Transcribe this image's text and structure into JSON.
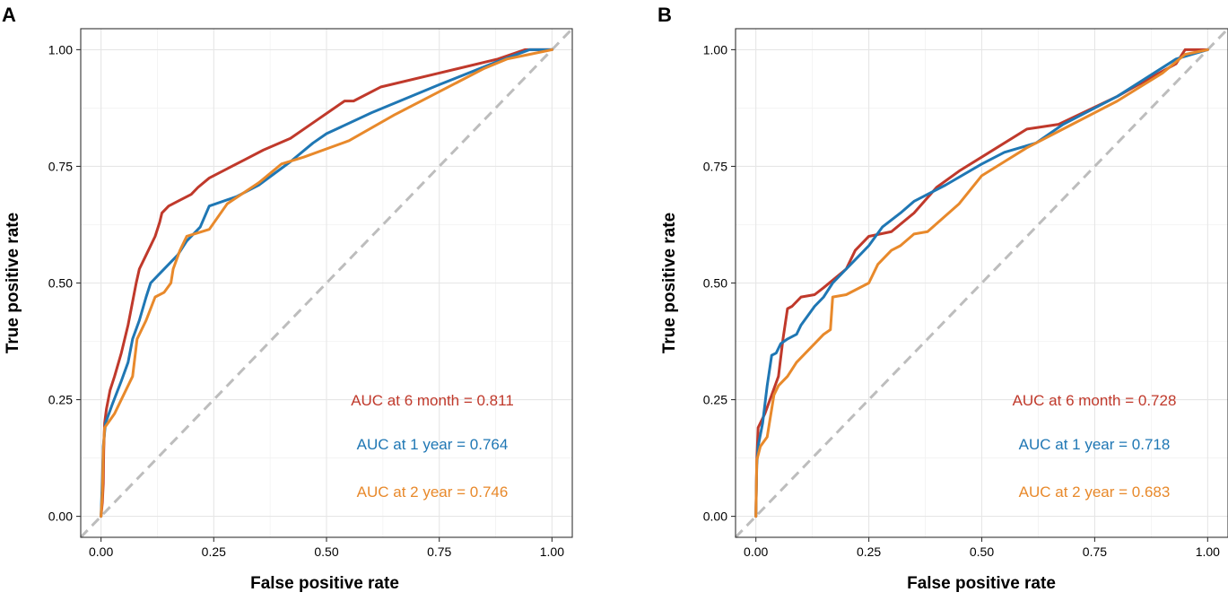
{
  "figure": {
    "colors": {
      "six_month": "#c0392b",
      "one_year": "#1f77b4",
      "two_year": "#e8892b",
      "reference": "#bdbdbd"
    }
  },
  "chart_data": [
    {
      "panel": "A",
      "type": "line",
      "xlabel": "False positive rate",
      "ylabel": "True positive rate",
      "xlim": [
        0,
        1
      ],
      "ylim": [
        0,
        1
      ],
      "xticks": [
        "0.00",
        "0.25",
        "0.50",
        "0.75",
        "1.00"
      ],
      "yticks": [
        "0.00",
        "0.25",
        "0.50",
        "0.75",
        "1.00"
      ],
      "grid": true,
      "reference_line": [
        [
          0,
          0
        ],
        [
          1,
          1
        ]
      ],
      "series": [
        {
          "name": "6 month",
          "label": "AUC at 6 month = 0.811",
          "color": "#c0392b",
          "points": [
            [
              0,
              0
            ],
            [
              0.003,
              0.03
            ],
            [
              0.005,
              0.07
            ],
            [
              0.006,
              0.14
            ],
            [
              0.008,
              0.2
            ],
            [
              0.012,
              0.23
            ],
            [
              0.02,
              0.27
            ],
            [
              0.03,
              0.3
            ],
            [
              0.045,
              0.35
            ],
            [
              0.06,
              0.41
            ],
            [
              0.07,
              0.46
            ],
            [
              0.078,
              0.5
            ],
            [
              0.085,
              0.53
            ],
            [
              0.1,
              0.56
            ],
            [
              0.12,
              0.6
            ],
            [
              0.13,
              0.63
            ],
            [
              0.135,
              0.65
            ],
            [
              0.15,
              0.665
            ],
            [
              0.17,
              0.675
            ],
            [
              0.2,
              0.69
            ],
            [
              0.215,
              0.705
            ],
            [
              0.24,
              0.725
            ],
            [
              0.28,
              0.745
            ],
            [
              0.32,
              0.765
            ],
            [
              0.36,
              0.785
            ],
            [
              0.42,
              0.81
            ],
            [
              0.48,
              0.85
            ],
            [
              0.54,
              0.89
            ],
            [
              0.56,
              0.89
            ],
            [
              0.62,
              0.92
            ],
            [
              0.75,
              0.95
            ],
            [
              0.88,
              0.98
            ],
            [
              0.94,
              1.0
            ],
            [
              1.0,
              1.0
            ]
          ]
        },
        {
          "name": "1 year",
          "label": "AUC at 1 year = 0.764",
          "color": "#1f77b4",
          "points": [
            [
              0,
              0
            ],
            [
              0.003,
              0.08
            ],
            [
              0.005,
              0.15
            ],
            [
              0.01,
              0.2
            ],
            [
              0.025,
              0.24
            ],
            [
              0.045,
              0.29
            ],
            [
              0.06,
              0.33
            ],
            [
              0.07,
              0.38
            ],
            [
              0.085,
              0.42
            ],
            [
              0.1,
              0.47
            ],
            [
              0.11,
              0.5
            ],
            [
              0.13,
              0.52
            ],
            [
              0.15,
              0.54
            ],
            [
              0.17,
              0.56
            ],
            [
              0.19,
              0.59
            ],
            [
              0.22,
              0.62
            ],
            [
              0.24,
              0.665
            ],
            [
              0.3,
              0.685
            ],
            [
              0.35,
              0.71
            ],
            [
              0.42,
              0.76
            ],
            [
              0.47,
              0.8
            ],
            [
              0.5,
              0.82
            ],
            [
              0.6,
              0.865
            ],
            [
              0.75,
              0.925
            ],
            [
              0.88,
              0.975
            ],
            [
              0.95,
              1.0
            ],
            [
              1.0,
              1.0
            ]
          ]
        },
        {
          "name": "2 year",
          "label": "AUC at 2 year = 0.746",
          "color": "#e8892b",
          "points": [
            [
              0,
              0
            ],
            [
              0.003,
              0.05
            ],
            [
              0.005,
              0.14
            ],
            [
              0.008,
              0.19
            ],
            [
              0.03,
              0.22
            ],
            [
              0.06,
              0.28
            ],
            [
              0.07,
              0.3
            ],
            [
              0.08,
              0.38
            ],
            [
              0.1,
              0.42
            ],
            [
              0.12,
              0.47
            ],
            [
              0.14,
              0.48
            ],
            [
              0.155,
              0.5
            ],
            [
              0.16,
              0.53
            ],
            [
              0.175,
              0.57
            ],
            [
              0.19,
              0.6
            ],
            [
              0.24,
              0.615
            ],
            [
              0.28,
              0.67
            ],
            [
              0.35,
              0.715
            ],
            [
              0.4,
              0.755
            ],
            [
              0.45,
              0.77
            ],
            [
              0.55,
              0.805
            ],
            [
              0.65,
              0.86
            ],
            [
              0.75,
              0.91
            ],
            [
              0.85,
              0.96
            ],
            [
              0.9,
              0.98
            ],
            [
              0.95,
              0.99
            ],
            [
              1.0,
              1.0
            ]
          ]
        }
      ]
    },
    {
      "panel": "B",
      "type": "line",
      "xlabel": "False positive rate",
      "ylabel": "True positive rate",
      "xlim": [
        0,
        1
      ],
      "ylim": [
        0,
        1
      ],
      "xticks": [
        "0.00",
        "0.25",
        "0.50",
        "0.75",
        "1.00"
      ],
      "yticks": [
        "0.00",
        "0.25",
        "0.50",
        "0.75",
        "1.00"
      ],
      "grid": true,
      "reference_line": [
        [
          0,
          0
        ],
        [
          1,
          1
        ]
      ],
      "series": [
        {
          "name": "6 month",
          "label": "AUC at 6 month = 0.728",
          "color": "#c0392b",
          "points": [
            [
              0,
              0
            ],
            [
              0.002,
              0.12
            ],
            [
              0.005,
              0.19
            ],
            [
              0.02,
              0.22
            ],
            [
              0.035,
              0.26
            ],
            [
              0.05,
              0.3
            ],
            [
              0.06,
              0.38
            ],
            [
              0.07,
              0.445
            ],
            [
              0.08,
              0.45
            ],
            [
              0.1,
              0.47
            ],
            [
              0.13,
              0.475
            ],
            [
              0.15,
              0.49
            ],
            [
              0.2,
              0.53
            ],
            [
              0.22,
              0.57
            ],
            [
              0.25,
              0.6
            ],
            [
              0.3,
              0.61
            ],
            [
              0.35,
              0.65
            ],
            [
              0.4,
              0.705
            ],
            [
              0.45,
              0.74
            ],
            [
              0.5,
              0.77
            ],
            [
              0.6,
              0.83
            ],
            [
              0.67,
              0.84
            ],
            [
              0.8,
              0.9
            ],
            [
              0.93,
              0.97
            ],
            [
              0.95,
              1.0
            ],
            [
              1.0,
              1.0
            ]
          ]
        },
        {
          "name": "1 year",
          "label": "AUC at 1 year = 0.718",
          "color": "#1f77b4",
          "points": [
            [
              0,
              0
            ],
            [
              0.002,
              0.11
            ],
            [
              0.005,
              0.15
            ],
            [
              0.015,
              0.2
            ],
            [
              0.025,
              0.28
            ],
            [
              0.035,
              0.345
            ],
            [
              0.045,
              0.35
            ],
            [
              0.055,
              0.37
            ],
            [
              0.07,
              0.38
            ],
            [
              0.09,
              0.39
            ],
            [
              0.1,
              0.41
            ],
            [
              0.13,
              0.45
            ],
            [
              0.15,
              0.47
            ],
            [
              0.17,
              0.5
            ],
            [
              0.2,
              0.53
            ],
            [
              0.23,
              0.56
            ],
            [
              0.25,
              0.58
            ],
            [
              0.28,
              0.62
            ],
            [
              0.32,
              0.65
            ],
            [
              0.35,
              0.675
            ],
            [
              0.42,
              0.71
            ],
            [
              0.5,
              0.755
            ],
            [
              0.55,
              0.78
            ],
            [
              0.62,
              0.8
            ],
            [
              0.68,
              0.84
            ],
            [
              0.8,
              0.9
            ],
            [
              0.93,
              0.98
            ],
            [
              1.0,
              1.0
            ]
          ]
        },
        {
          "name": "2 year",
          "label": "AUC at 2 year = 0.683",
          "color": "#e8892b",
          "points": [
            [
              0,
              0
            ],
            [
              0.002,
              0.12
            ],
            [
              0.01,
              0.15
            ],
            [
              0.025,
              0.17
            ],
            [
              0.04,
              0.26
            ],
            [
              0.05,
              0.28
            ],
            [
              0.07,
              0.3
            ],
            [
              0.09,
              0.33
            ],
            [
              0.12,
              0.36
            ],
            [
              0.15,
              0.39
            ],
            [
              0.165,
              0.4
            ],
            [
              0.17,
              0.47
            ],
            [
              0.2,
              0.475
            ],
            [
              0.25,
              0.5
            ],
            [
              0.27,
              0.54
            ],
            [
              0.3,
              0.57
            ],
            [
              0.32,
              0.58
            ],
            [
              0.35,
              0.605
            ],
            [
              0.38,
              0.61
            ],
            [
              0.45,
              0.67
            ],
            [
              0.5,
              0.73
            ],
            [
              0.55,
              0.76
            ],
            [
              0.6,
              0.79
            ],
            [
              0.7,
              0.84
            ],
            [
              0.8,
              0.89
            ],
            [
              0.9,
              0.95
            ],
            [
              0.95,
              0.99
            ],
            [
              1.0,
              1.0
            ]
          ]
        }
      ]
    }
  ]
}
